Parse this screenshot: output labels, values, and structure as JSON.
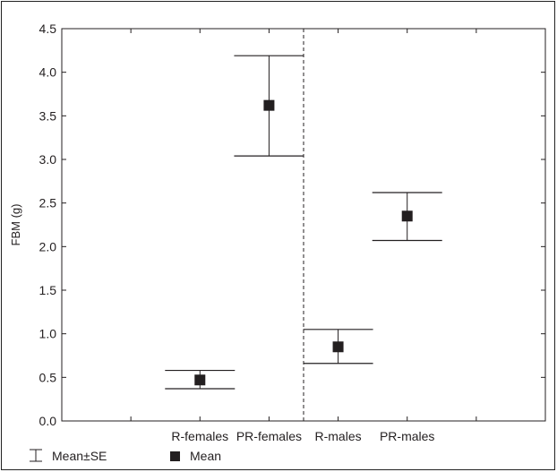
{
  "chart_data": {
    "type": "scatter",
    "title": "",
    "xlabel": "",
    "ylabel": "FBM (g)",
    "ylim": [
      0.0,
      4.5
    ],
    "yticks": [
      "0.0",
      "0.5",
      "1.0",
      "1.5",
      "2.0",
      "2.5",
      "3.0",
      "3.5",
      "4.0",
      "4.5"
    ],
    "grid": false,
    "categories": [
      "R-females",
      "PR-females",
      "R-males",
      "PR-males"
    ],
    "category_positions": [
      2,
      3,
      4,
      5
    ],
    "x_extent": [
      0,
      7
    ],
    "separator_at": 3.5,
    "points": [
      {
        "category": "R-females",
        "mean": 0.47,
        "lower": 0.37,
        "upper": 0.58
      },
      {
        "category": "PR-females",
        "mean": 3.62,
        "lower": 3.04,
        "upper": 4.19
      },
      {
        "category": "R-males",
        "mean": 0.85,
        "lower": 0.66,
        "upper": 1.05
      },
      {
        "category": "PR-males",
        "mean": 2.35,
        "lower": 2.07,
        "upper": 2.62
      }
    ],
    "legend": {
      "placement": "bottom-left",
      "items": [
        {
          "symbol": "error-bar",
          "label": "Mean±SE"
        },
        {
          "symbol": "square",
          "label": "Mean"
        }
      ]
    },
    "colors": {
      "marker": "#231f20",
      "line": "#231f20"
    }
  }
}
